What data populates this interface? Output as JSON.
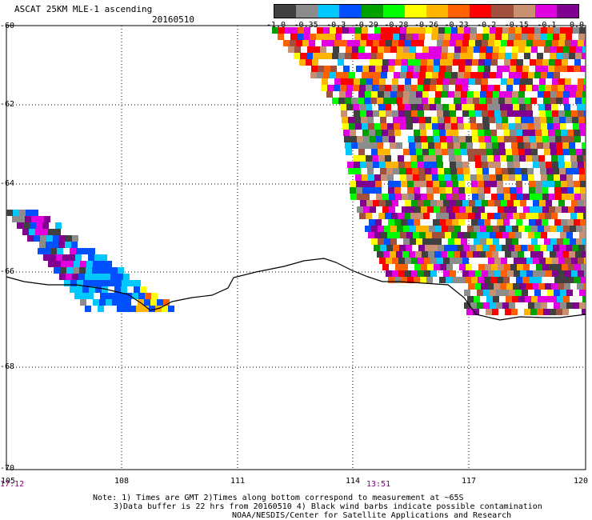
{
  "header": {
    "title": "ASCAT 25KM MLE-1 ascending",
    "date": "20160510"
  },
  "legend": {
    "colors": [
      "#404040",
      "#8c8c8c",
      "#00c8ff",
      "#0050ff",
      "#00a000",
      "#00ff00",
      "#ffff00",
      "#ffb400",
      "#ff6000",
      "#ff0000",
      "#a0503c",
      "#c89070",
      "#e000e0",
      "#800090"
    ],
    "tick_labels": [
      "-1.0",
      "-0.35",
      "-0.3",
      "-0.29",
      "-0.28",
      "-0.26",
      "-0.23",
      "-0.2",
      "-0.15",
      "-0.1",
      "0.0"
    ]
  },
  "axes": {
    "lon_labels": [
      "105",
      "108",
      "111",
      "114",
      "117",
      "120"
    ],
    "lat_labels": [
      "-60",
      "-62",
      "-64",
      "-66",
      "-68",
      "-70"
    ],
    "lon_range": [
      105,
      120
    ],
    "lat_range": [
      -70,
      -60
    ]
  },
  "times": {
    "left": "17:12",
    "center": "13:51"
  },
  "notes": {
    "line1": "Note: 1) Times are GMT 2)Times along bottom correspond to measurement at ~65S",
    "line2": "3)Data buffer is 22 hrs from 20160510 4) Black wind barbs indicate possible contamination",
    "line3": "NOAA/NESDIS/Center for Satellite Applications and Research"
  }
}
